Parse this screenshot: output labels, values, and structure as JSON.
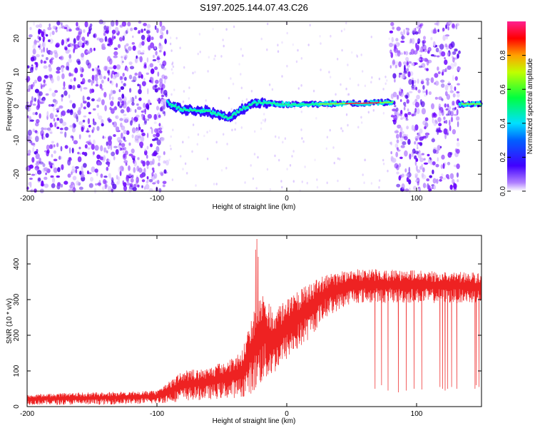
{
  "title": "S197.2025.144.07.43.C26",
  "chart_data": [
    {
      "type": "heatmap",
      "xlabel": "Height of straight line (km)",
      "ylabel": "Frequency (Hz)",
      "xlim": [
        -200,
        150
      ],
      "ylim": [
        -25,
        25
      ],
      "x_ticks": [
        "-200",
        "-100",
        "0",
        "100"
      ],
      "y_ticks": [
        "-20",
        "-10",
        "0",
        "10",
        "20"
      ],
      "colorbar": {
        "label": "Normalized spectral amplitude",
        "range": [
          0,
          1
        ],
        "ticks": [
          "0.0",
          "0.2",
          "0.4",
          "0.6",
          "0.8"
        ]
      },
      "ridge": [
        {
          "x": -92,
          "y": 1.0
        },
        {
          "x": -80,
          "y": -1.0
        },
        {
          "x": -60,
          "y": -1.5
        },
        {
          "x": -45,
          "y": -3.5
        },
        {
          "x": -35,
          "y": -1.0
        },
        {
          "x": -25,
          "y": 1.0
        },
        {
          "x": -15,
          "y": 1.0
        },
        {
          "x": 0,
          "y": 0.5
        },
        {
          "x": 30,
          "y": 0.7
        },
        {
          "x": 60,
          "y": 0.9
        },
        {
          "x": 80,
          "y": 1.2
        },
        {
          "x": 130,
          "y": 0.7
        },
        {
          "x": 150,
          "y": 0.7
        }
      ],
      "noise_regions": [
        [
          -200,
          -92
        ],
        [
          80,
          133
        ]
      ]
    },
    {
      "type": "line",
      "xlabel": "Height of straight line (km)",
      "ylabel": "SNR (10 * v/v)",
      "xlim": [
        -200,
        150
      ],
      "ylim": [
        0,
        480
      ],
      "x_ticks": [
        "-200",
        "-100",
        "0",
        "100"
      ],
      "y_ticks": [
        "0",
        "100",
        "200",
        "300",
        "400"
      ],
      "color": "#ee2222",
      "envelope": [
        {
          "x": -200,
          "lo": 5,
          "hi": 35
        },
        {
          "x": -150,
          "lo": 5,
          "hi": 40
        },
        {
          "x": -100,
          "lo": 8,
          "hi": 45
        },
        {
          "x": -80,
          "lo": 15,
          "hi": 100
        },
        {
          "x": -60,
          "lo": 20,
          "hi": 110
        },
        {
          "x": -35,
          "lo": 25,
          "hi": 150
        },
        {
          "x": -25,
          "lo": 40,
          "hi": 280
        },
        {
          "x": -20,
          "lo": 60,
          "hi": 330
        },
        {
          "x": -10,
          "lo": 90,
          "hi": 270
        },
        {
          "x": 0,
          "lo": 130,
          "hi": 300
        },
        {
          "x": 15,
          "lo": 180,
          "hi": 340
        },
        {
          "x": 30,
          "lo": 250,
          "hi": 370
        },
        {
          "x": 50,
          "lo": 290,
          "hi": 385
        },
        {
          "x": 80,
          "lo": 290,
          "hi": 385
        },
        {
          "x": 120,
          "lo": 290,
          "hi": 380
        },
        {
          "x": 150,
          "lo": 290,
          "hi": 375
        }
      ],
      "spikes": [
        {
          "x": -23,
          "y": 470
        },
        {
          "x": -24,
          "y": 440
        },
        {
          "x": -22,
          "y": 420
        }
      ],
      "dropouts": [
        {
          "x": 68,
          "y": 50
        },
        {
          "x": 73,
          "y": 60
        },
        {
          "x": 78,
          "y": 45
        },
        {
          "x": 86,
          "y": 40
        },
        {
          "x": 92,
          "y": 45
        },
        {
          "x": 98,
          "y": 50
        },
        {
          "x": 104,
          "y": 48
        },
        {
          "x": 118,
          "y": 55
        },
        {
          "x": 120,
          "y": 50
        },
        {
          "x": 122,
          "y": 45
        },
        {
          "x": 124,
          "y": 50
        },
        {
          "x": 127,
          "y": 55
        },
        {
          "x": 131,
          "y": 50
        },
        {
          "x": 145,
          "y": 50
        },
        {
          "x": 146,
          "y": 60
        },
        {
          "x": 148,
          "y": 55
        }
      ]
    }
  ]
}
